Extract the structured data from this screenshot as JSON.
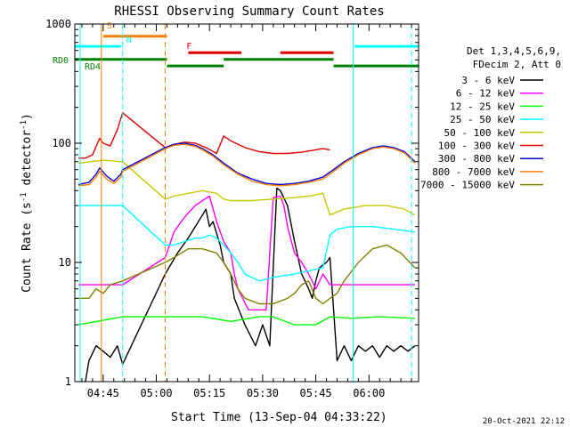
{
  "chart_data": {
    "type": "line",
    "title": "RHESSI Observing Summary Count Rates",
    "xlabel": "Start Time (13-Sep-04 04:33:22)",
    "ylabel_main": "Count Rate (s",
    "ylabel_sup1": "-1",
    "ylabel_mid": " detector",
    "ylabel_sup2": "-1",
    "ylabel_end": ")",
    "yscale": "log",
    "ylim": [
      1,
      1000
    ],
    "xlim_minutes": [
      4,
      101
    ],
    "y_ticks": [
      {
        "value": 1,
        "label": "1"
      },
      {
        "value": 10,
        "label": "10"
      },
      {
        "value": 100,
        "label": "100"
      },
      {
        "value": 1000,
        "label": "1000"
      }
    ],
    "x_ticks": [
      {
        "value": 12,
        "label": "04:45"
      },
      {
        "value": 27,
        "label": "05:00"
      },
      {
        "value": 42,
        "label": "05:15"
      },
      {
        "value": 57,
        "label": "05:30"
      },
      {
        "value": 72,
        "label": "05:45"
      },
      {
        "value": 87,
        "label": "06:00"
      }
    ],
    "legend_header": [
      "Det 1,3,4,5,6,9,",
      "FDecim 2, Att 0"
    ],
    "series": [
      {
        "name": "3 - 6 keV",
        "color": "#000000"
      },
      {
        "name": "6 - 12 keV",
        "color": "#ff00ff"
      },
      {
        "name": "12 - 25 keV",
        "color": "#00ff00"
      },
      {
        "name": "25 - 50 keV",
        "color": "#00ffff"
      },
      {
        "name": "50 - 100 keV",
        "color": "#c8c800"
      },
      {
        "name": "100 - 300 keV",
        "color": "#dd0000"
      },
      {
        "name": "300 - 800 keV",
        "color": "#0000dd"
      },
      {
        "name": "800 - 7000 keV",
        "color": "#ff8000"
      },
      {
        "name": "7000 - 15000 keV",
        "color": "#808000"
      }
    ],
    "flag_labels": {
      "s": "S",
      "n": "N",
      "f": "F",
      "rd0": "RD0",
      "rd4": "RD4"
    },
    "flag_bars": [
      {
        "flag": "N",
        "color": "#00ffff",
        "level": 650,
        "segments": [
          [
            4,
            17
          ],
          [
            83,
            101
          ]
        ]
      },
      {
        "flag": "S",
        "color": "#ff8000",
        "level": 790,
        "segments": [
          [
            12,
            30
          ]
        ]
      },
      {
        "flag": "F",
        "color": "#dd0000",
        "level": 575,
        "segments": [
          [
            36,
            51
          ],
          [
            62,
            77
          ]
        ]
      },
      {
        "flag": "RD0",
        "color": "#008000",
        "level": 505,
        "segments": [
          [
            4,
            30
          ],
          [
            46,
            77
          ]
        ]
      },
      {
        "flag": "RD4",
        "color": "#008000",
        "level": 445,
        "segments": [
          [
            30,
            46
          ],
          [
            77,
            101
          ]
        ]
      }
    ],
    "vlines": [
      {
        "x": 5.5,
        "color": "#00ffff",
        "dashed": false
      },
      {
        "x": 11.5,
        "color": "#ff8000",
        "dashed": false
      },
      {
        "x": 17.5,
        "color": "#00ffff",
        "dashed": true
      },
      {
        "x": 29.5,
        "color": "#ff8000",
        "dashed": true
      },
      {
        "x": 82.5,
        "color": "#00ffff",
        "dashed": false
      },
      {
        "x": 99,
        "color": "#00ffff",
        "dashed": true
      }
    ],
    "series_points": {
      "3 - 6 keV": [
        [
          7,
          1
        ],
        [
          8,
          1.5
        ],
        [
          10,
          2
        ],
        [
          12,
          1.8
        ],
        [
          14,
          1.6
        ],
        [
          16,
          2
        ],
        [
          17.5,
          1.4
        ],
        [
          29.5,
          8
        ],
        [
          33,
          12
        ],
        [
          36,
          16
        ],
        [
          38,
          20
        ],
        [
          40,
          25
        ],
        [
          41,
          28
        ],
        [
          42,
          20
        ],
        [
          43,
          22
        ],
        [
          45,
          14
        ],
        [
          46,
          10
        ],
        [
          48,
          8
        ],
        [
          49,
          5
        ],
        [
          52,
          3
        ],
        [
          55,
          2
        ],
        [
          57,
          3
        ],
        [
          59,
          2
        ],
        [
          61,
          42
        ],
        [
          62,
          40
        ],
        [
          64,
          30
        ],
        [
          66,
          15
        ],
        [
          68,
          8
        ],
        [
          70,
          6
        ],
        [
          71,
          5
        ],
        [
          72,
          7
        ],
        [
          73,
          9
        ],
        [
          75,
          10
        ],
        [
          76,
          11
        ],
        [
          78,
          1.5
        ],
        [
          80,
          2
        ],
        [
          82,
          1.5
        ],
        [
          84,
          2
        ],
        [
          86,
          1.8
        ],
        [
          88,
          2
        ],
        [
          90,
          1.6
        ],
        [
          92,
          2
        ],
        [
          94,
          1.8
        ],
        [
          96,
          2
        ],
        [
          98,
          1.8
        ],
        [
          100,
          2
        ]
      ],
      "6 - 12 keV": [
        [
          5,
          6.5
        ],
        [
          17.5,
          6.5
        ],
        [
          29.5,
          11
        ],
        [
          32,
          18
        ],
        [
          34,
          22
        ],
        [
          36,
          26
        ],
        [
          38,
          30
        ],
        [
          40,
          33
        ],
        [
          42,
          36
        ],
        [
          44,
          22
        ],
        [
          46,
          15
        ],
        [
          48,
          12
        ],
        [
          49,
          8
        ],
        [
          50,
          6
        ],
        [
          53,
          4
        ],
        [
          58,
          4
        ],
        [
          60,
          35
        ],
        [
          62,
          36
        ],
        [
          63,
          30
        ],
        [
          64,
          20
        ],
        [
          66,
          12
        ],
        [
          68,
          10
        ],
        [
          70,
          8
        ],
        [
          72,
          6
        ],
        [
          74,
          8
        ],
        [
          76,
          6.5
        ],
        [
          100,
          6.5
        ]
      ],
      "12 - 25 keV": [
        [
          5,
          3
        ],
        [
          17.5,
          3.5
        ],
        [
          29.5,
          3.5
        ],
        [
          40,
          3.5
        ],
        [
          48,
          3.2
        ],
        [
          56,
          3.5
        ],
        [
          60,
          3.5
        ],
        [
          66,
          3
        ],
        [
          72,
          3
        ],
        [
          76,
          3.5
        ],
        [
          82,
          3.4
        ],
        [
          90,
          3.5
        ],
        [
          100,
          3.4
        ]
      ],
      "25 - 50 keV": [
        [
          5,
          30
        ],
        [
          17.5,
          30
        ],
        [
          29.5,
          14
        ],
        [
          32,
          14
        ],
        [
          35,
          15
        ],
        [
          38,
          16
        ],
        [
          40,
          16
        ],
        [
          42,
          17
        ],
        [
          44,
          16
        ],
        [
          46,
          14
        ],
        [
          48,
          12
        ],
        [
          50,
          10
        ],
        [
          52,
          8
        ],
        [
          56,
          7
        ],
        [
          60,
          7.5
        ],
        [
          66,
          8
        ],
        [
          70,
          8.5
        ],
        [
          74,
          9
        ],
        [
          76,
          17
        ],
        [
          78,
          19
        ],
        [
          82,
          20
        ],
        [
          88,
          20
        ],
        [
          94,
          19
        ],
        [
          100,
          18
        ]
      ],
      "50 - 100 keV": [
        [
          5,
          68
        ],
        [
          12,
          72
        ],
        [
          17.5,
          70
        ],
        [
          29.5,
          34
        ],
        [
          32,
          36
        ],
        [
          36,
          38
        ],
        [
          40,
          40
        ],
        [
          44,
          38
        ],
        [
          46,
          34
        ],
        [
          48,
          33
        ],
        [
          50,
          33
        ],
        [
          54,
          33
        ],
        [
          60,
          34
        ],
        [
          66,
          35
        ],
        [
          70,
          36
        ],
        [
          74,
          38
        ],
        [
          76,
          25
        ],
        [
          80,
          28
        ],
        [
          86,
          30
        ],
        [
          92,
          30
        ],
        [
          97,
          28
        ],
        [
          100,
          25
        ]
      ],
      "100 - 300 keV": [
        [
          5,
          75
        ],
        [
          7,
          75
        ],
        [
          9,
          80
        ],
        [
          11,
          110
        ],
        [
          12,
          100
        ],
        [
          14,
          95
        ],
        [
          16,
          130
        ],
        [
          17.5,
          180
        ],
        [
          29.5,
          92
        ],
        [
          32,
          98
        ],
        [
          35,
          102
        ],
        [
          38,
          100
        ],
        [
          41,
          92
        ],
        [
          44,
          82
        ],
        [
          46,
          115
        ],
        [
          48,
          105
        ],
        [
          52,
          92
        ],
        [
          56,
          85
        ],
        [
          60,
          82
        ],
        [
          64,
          82
        ],
        [
          68,
          84
        ],
        [
          72,
          88
        ],
        [
          74,
          90
        ],
        [
          76,
          88
        ]
      ],
      "300 - 800 keV": [
        [
          5,
          45
        ],
        [
          8,
          47
        ],
        [
          10,
          55
        ],
        [
          11,
          62
        ],
        [
          13,
          53
        ],
        [
          15,
          48
        ],
        [
          17,
          55
        ],
        [
          17.5,
          60
        ],
        [
          29.5,
          92
        ],
        [
          32,
          98
        ],
        [
          35,
          100
        ],
        [
          38,
          96
        ],
        [
          40,
          90
        ],
        [
          43,
          80
        ],
        [
          46,
          68
        ],
        [
          50,
          56
        ],
        [
          54,
          50
        ],
        [
          58,
          46
        ],
        [
          62,
          45
        ],
        [
          66,
          46
        ],
        [
          70,
          48
        ],
        [
          74,
          52
        ],
        [
          77,
          60
        ],
        [
          80,
          70
        ],
        [
          84,
          82
        ],
        [
          88,
          92
        ],
        [
          91,
          95
        ],
        [
          94,
          92
        ],
        [
          97,
          85
        ],
        [
          100,
          70
        ]
      ],
      "800 - 7000 keV": [
        [
          5,
          44
        ],
        [
          8,
          45
        ],
        [
          10,
          52
        ],
        [
          11,
          58
        ],
        [
          13,
          50
        ],
        [
          15,
          46
        ],
        [
          17,
          52
        ],
        [
          17.5,
          58
        ],
        [
          29.5,
          90
        ],
        [
          32,
          96
        ],
        [
          35,
          98
        ],
        [
          38,
          94
        ],
        [
          40,
          88
        ],
        [
          43,
          78
        ],
        [
          46,
          66
        ],
        [
          50,
          55
        ],
        [
          54,
          48
        ],
        [
          58,
          45
        ],
        [
          62,
          44
        ],
        [
          66,
          45
        ],
        [
          70,
          47
        ],
        [
          74,
          50
        ],
        [
          77,
          58
        ],
        [
          80,
          68
        ],
        [
          84,
          80
        ],
        [
          88,
          90
        ],
        [
          91,
          93
        ],
        [
          94,
          90
        ],
        [
          97,
          83
        ],
        [
          100,
          68
        ]
      ],
      "7000 - 15000 keV": [
        [
          5,
          5
        ],
        [
          8,
          5
        ],
        [
          10,
          6
        ],
        [
          12,
          5.5
        ],
        [
          14,
          6.5
        ],
        [
          17.5,
          7
        ],
        [
          29.5,
          10
        ],
        [
          32,
          11
        ],
        [
          36,
          13
        ],
        [
          40,
          13
        ],
        [
          44,
          12
        ],
        [
          46,
          10
        ],
        [
          48,
          8
        ],
        [
          50,
          6
        ],
        [
          52,
          5
        ],
        [
          56,
          4.5
        ],
        [
          60,
          4.5
        ],
        [
          64,
          5
        ],
        [
          66,
          5.5
        ],
        [
          68,
          6.5
        ],
        [
          70,
          7
        ],
        [
          72,
          5
        ],
        [
          74,
          4.5
        ],
        [
          76,
          5
        ],
        [
          78,
          5.5
        ],
        [
          80,
          7
        ],
        [
          84,
          10
        ],
        [
          88,
          13
        ],
        [
          92,
          14
        ],
        [
          96,
          12
        ],
        [
          100,
          9
        ]
      ]
    }
  },
  "footer": {
    "date_stamp": "20-Oct-2021 22:12"
  }
}
